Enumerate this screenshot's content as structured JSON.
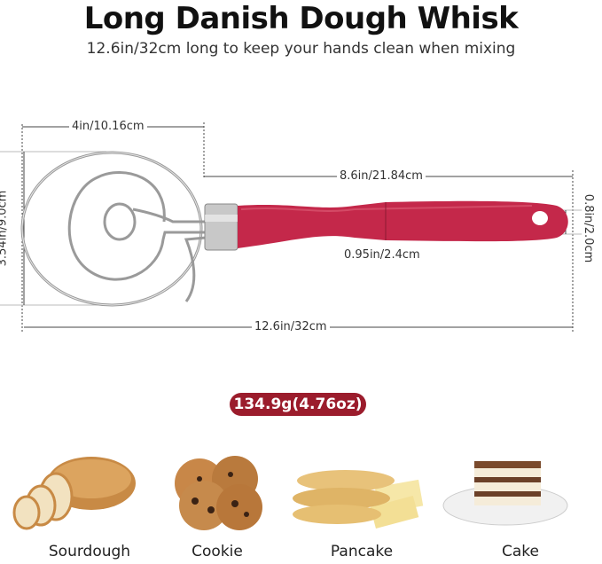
{
  "title": "Long Danish Dough Whisk",
  "subtitle": "12.6in/32cm long to keep your hands clean when mixing",
  "dimensions": {
    "head_width": "4in/10.16cm",
    "head_height": "3.54in/9.0cm",
    "handle_length": "8.6in/21.84cm",
    "handle_end_height": "0.8in/2.0cm",
    "handle_width": "0.95in/2.4cm",
    "total_length": "12.6in/32cm"
  },
  "weight": "134.9g(4.76oz)",
  "colors": {
    "handle": "#c4284a",
    "badge": "#9b1c2c"
  },
  "uses": [
    {
      "label": "Sourdough"
    },
    {
      "label": "Cookie"
    },
    {
      "label": "Pancake"
    },
    {
      "label": "Cake"
    }
  ]
}
